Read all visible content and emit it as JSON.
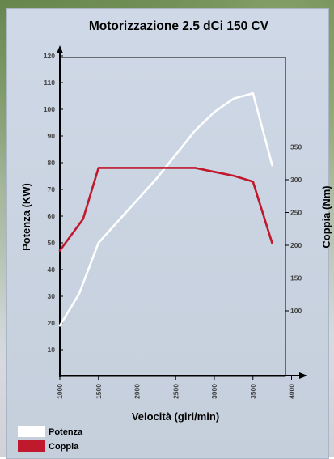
{
  "chart_data": {
    "type": "line",
    "title": "Motorizzazione 2.5 dCi 150 CV",
    "xlabel": "Velocità (giri/min)",
    "ylabel_left": "Potenza (KW)",
    "ylabel_right": "Coppia (Nm)",
    "xlim": [
      1000,
      4000
    ],
    "ylim_left": [
      0,
      120
    ],
    "ylim_right": [
      0,
      380
    ],
    "x_ticks": [
      "1000",
      "1500",
      "2000",
      "2500",
      "3000",
      "3500",
      "4000"
    ],
    "y_left_ticks": [
      "10",
      "20",
      "30",
      "40",
      "50",
      "60",
      "70",
      "80",
      "90",
      "100",
      "110",
      "120"
    ],
    "y_right_ticks": [
      "100",
      "150",
      "200",
      "250",
      "300",
      "350"
    ],
    "series": [
      {
        "name": "Potenza",
        "axis": "left",
        "color": "#ffffff",
        "x": [
          1000,
          1250,
          1500,
          1750,
          2000,
          2250,
          2500,
          2750,
          3000,
          3250,
          3500,
          3750
        ],
        "y": [
          19,
          31,
          50,
          58,
          66,
          74,
          83,
          92,
          99,
          104,
          106,
          79
        ]
      },
      {
        "name": "Coppia",
        "axis": "right",
        "color": "#c0182c",
        "x": [
          1000,
          1300,
          1500,
          1750,
          2000,
          2250,
          2500,
          2750,
          3000,
          3250,
          3500,
          3750
        ],
        "y": [
          192,
          240,
          318,
          318,
          318,
          318,
          318,
          318,
          312,
          306,
          297,
          203
        ]
      }
    ],
    "legend": [
      "Potenza",
      "Coppia"
    ],
    "legend_position": "bottom-left",
    "grid": false
  }
}
